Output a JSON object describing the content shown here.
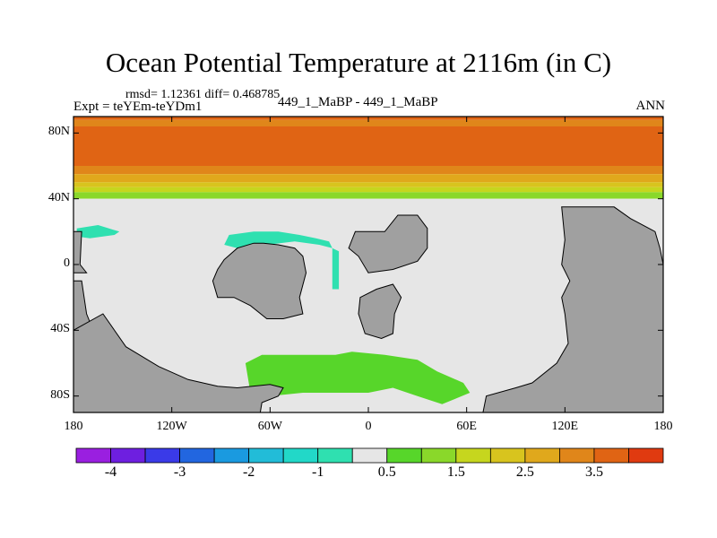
{
  "chart_data": {
    "type": "heatmap",
    "title": "Ocean Potential Temperature at 2116m (in C)",
    "stats_line": "rmsd= 1.12361 diff= 0.468785",
    "left_label": "Expt = teYEm-teYDm1",
    "center_label": "449_1_MaBP - 449_1_MaBP",
    "right_label": "ANN",
    "x_ticks": [
      "180",
      "120W",
      "60W",
      "0",
      "60E",
      "120E",
      "180"
    ],
    "y_ticks": [
      "80N",
      "40N",
      "0",
      "40S",
      "80S"
    ],
    "xlim": [
      -180,
      180
    ],
    "ylim": [
      -90,
      90
    ],
    "colorbar_labels": [
      "-4",
      "-3",
      "-2",
      "-1",
      "0.5",
      "1.5",
      "2.5",
      "3.5"
    ],
    "colorbar_colors": [
      "#9a1fe0",
      "#6e1fe0",
      "#3a3ae8",
      "#2266e0",
      "#1a9ae0",
      "#22bcd8",
      "#22d8c8",
      "#2fe0b0",
      "#e6e6e6",
      "#57d62a",
      "#8ad82a",
      "#c6d61e",
      "#d8c41e",
      "#e0a81c",
      "#e0861a",
      "#e06414",
      "#e03a10"
    ],
    "land_color": "#a0a0a0",
    "zonal_bands": [
      {
        "lat_top": 90,
        "lat_bottom": 88,
        "color": "#e06414"
      },
      {
        "lat_top": 88,
        "lat_bottom": 84,
        "color": "#e0861a"
      },
      {
        "lat_top": 84,
        "lat_bottom": 60,
        "color": "#e06414"
      },
      {
        "lat_top": 60,
        "lat_bottom": 55,
        "color": "#e0861a"
      },
      {
        "lat_top": 55,
        "lat_bottom": 50,
        "color": "#e0a81c"
      },
      {
        "lat_top": 50,
        "lat_bottom": 47,
        "color": "#d8c41e"
      },
      {
        "lat_top": 47,
        "lat_bottom": 44,
        "color": "#c6d61e"
      },
      {
        "lat_top": 44,
        "lat_bottom": 40,
        "color": "#8ad82a"
      },
      {
        "lat_top": 40,
        "lat_bottom": -90,
        "color": "#e6e6e6"
      }
    ],
    "land_regions": [
      {
        "name": "americas-west",
        "points": [
          [
            -180,
            -10
          ],
          [
            -175,
            -10
          ],
          [
            -172,
            -30
          ],
          [
            -160,
            -60
          ],
          [
            -150,
            -65
          ],
          [
            -130,
            -78
          ],
          [
            -180,
            -90
          ]
        ]
      },
      {
        "name": "americas-south",
        "points": [
          [
            -180,
            -90
          ],
          [
            -180,
            -40
          ],
          [
            -162,
            -30
          ],
          [
            -148,
            -50
          ],
          [
            -128,
            -62
          ],
          [
            -110,
            -70
          ],
          [
            -92,
            -74
          ],
          [
            -80,
            -75
          ],
          [
            -60,
            -73
          ],
          [
            -52,
            -75
          ],
          [
            -55,
            -80
          ],
          [
            -65,
            -84
          ],
          [
            -66,
            -90
          ]
        ]
      },
      {
        "name": "north-america-pacific",
        "points": [
          [
            -180,
            20
          ],
          [
            -175,
            20
          ],
          [
            -176,
            0
          ],
          [
            -172,
            -5
          ],
          [
            -180,
            -5
          ]
        ]
      },
      {
        "name": "north-atlantic-land",
        "points": [
          [
            -88,
            3
          ],
          [
            -80,
            10
          ],
          [
            -70,
            13
          ],
          [
            -64,
            13
          ],
          [
            -55,
            12
          ],
          [
            -45,
            10
          ],
          [
            -40,
            5
          ],
          [
            -38,
            -5
          ],
          [
            -42,
            -20
          ],
          [
            -40,
            -30
          ],
          [
            -52,
            -33
          ],
          [
            -62,
            -33
          ],
          [
            -72,
            -25
          ],
          [
            -82,
            -20
          ],
          [
            -92,
            -20
          ],
          [
            -95,
            -10
          ],
          [
            -92,
            -3
          ]
        ]
      },
      {
        "name": "europe-africa-north",
        "points": [
          [
            -8,
            20
          ],
          [
            10,
            20
          ],
          [
            18,
            30
          ],
          [
            30,
            30
          ],
          [
            36,
            22
          ],
          [
            36,
            10
          ],
          [
            30,
            2
          ],
          [
            15,
            -3
          ],
          [
            0,
            -5
          ],
          [
            -6,
            5
          ],
          [
            -12,
            10
          ],
          [
            -10,
            15
          ]
        ]
      },
      {
        "name": "africa-south",
        "points": [
          [
            -5,
            -20
          ],
          [
            5,
            -15
          ],
          [
            15,
            -12
          ],
          [
            20,
            -20
          ],
          [
            16,
            -30
          ],
          [
            15,
            -42
          ],
          [
            8,
            -45
          ],
          [
            -2,
            -42
          ],
          [
            -6,
            -30
          ]
        ]
      },
      {
        "name": "asia-australia",
        "points": [
          [
            118,
            35
          ],
          [
            150,
            35
          ],
          [
            160,
            28
          ],
          [
            175,
            20
          ],
          [
            178,
            10
          ],
          [
            180,
            0
          ],
          [
            180,
            -90
          ],
          [
            70,
            -90
          ],
          [
            72,
            -80
          ],
          [
            90,
            -75
          ],
          [
            100,
            -72
          ],
          [
            115,
            -60
          ],
          [
            122,
            -48
          ],
          [
            120,
            -30
          ],
          [
            118,
            -20
          ],
          [
            123,
            -10
          ],
          [
            118,
            0
          ],
          [
            120,
            15
          ]
        ]
      }
    ],
    "positive_anomaly_regions": [
      {
        "name": "southern-atlantic-green",
        "points": [
          [
            -75,
            -60
          ],
          [
            -65,
            -55
          ],
          [
            -40,
            -55
          ],
          [
            -20,
            -55
          ],
          [
            -10,
            -53
          ],
          [
            10,
            -55
          ],
          [
            30,
            -58
          ],
          [
            42,
            -65
          ],
          [
            58,
            -72
          ],
          [
            62,
            -78
          ],
          [
            45,
            -85
          ],
          [
            30,
            -80
          ],
          [
            15,
            -75
          ],
          [
            0,
            -78
          ],
          [
            -20,
            -78
          ],
          [
            -40,
            -78
          ],
          [
            -60,
            -80
          ],
          [
            -72,
            -78
          ]
        ]
      }
    ],
    "negative_anomaly_regions": [
      {
        "name": "cyan-north-atlantic",
        "points": [
          [
            -85,
            18
          ],
          [
            -70,
            20
          ],
          [
            -55,
            20
          ],
          [
            -42,
            18
          ],
          [
            -32,
            16
          ],
          [
            -24,
            14
          ],
          [
            -22,
            10
          ],
          [
            -30,
            12
          ],
          [
            -45,
            14
          ],
          [
            -62,
            12
          ],
          [
            -80,
            10
          ],
          [
            -88,
            12
          ]
        ]
      },
      {
        "name": "cyan-north-pacific",
        "points": [
          [
            -178,
            22
          ],
          [
            -165,
            24
          ],
          [
            -152,
            20
          ],
          [
            -155,
            18
          ],
          [
            -170,
            16
          ],
          [
            -178,
            17
          ]
        ]
      },
      {
        "name": "cyan-east-atlantic",
        "points": [
          [
            -22,
            10
          ],
          [
            -18,
            8
          ],
          [
            -18,
            -15
          ],
          [
            -22,
            -15
          ]
        ]
      }
    ]
  }
}
